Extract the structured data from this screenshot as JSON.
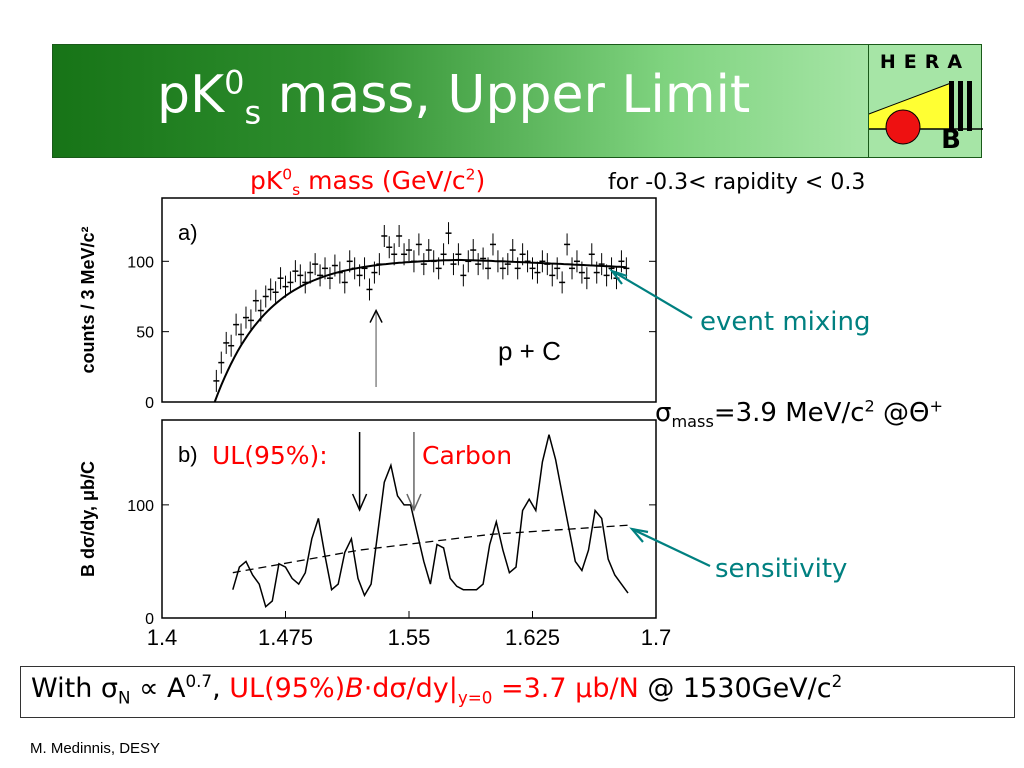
{
  "slide": {
    "title_main": "pK",
    "title_sup": "0",
    "title_sub": "s",
    "title_rest": " mass, Upper Limit",
    "logo_top": "HERA",
    "logo_bottom": "B",
    "xlabel_main": "pK",
    "xlabel_sup": "0",
    "xlabel_sub": "s",
    "xlabel_rest": " mass (GeV/c",
    "xlabel_sup2": "2",
    "xlabel_close": ")",
    "rapidity_note": "for -0.3< rapidity < 0.3",
    "event_mixing": "event mixing",
    "sigma_sym": "σ",
    "sigma_sub": "mass",
    "sigma_val": "=3.9 MeV/c",
    "sigma_sup": "2",
    "sigma_at": " @Θ",
    "sigma_plus": "+",
    "sensitivity": "sensitivity",
    "ul_label": "UL(95%):",
    "carbon_label": "Carbon",
    "footer": "M. Medinnis, DESY",
    "formula": {
      "with": "With σ",
      "sub_n": "N",
      "prop": " ∝ A",
      "sup_exp": "0.7",
      "comma": ", ",
      "ul": "UL(95%)",
      "B": "B",
      "dot": "·",
      "dsig": "dσ/dy|",
      "sub_y": "y=0",
      "val": " =3.7 μb/N",
      "at": " @ 1530GeV/c",
      "sup2": "2"
    }
  },
  "colors": {
    "title_text": "#ffffff",
    "accent_red": "#ff0000",
    "accent_teal": "#008080",
    "logo_bg": "#a6e5a6"
  },
  "chart_data": [
    {
      "type": "scatter",
      "title": "a)",
      "annotation": "p + C",
      "ylabel": "counts / 3 MeV/c²",
      "y_ticks": [
        "0",
        "50",
        "100"
      ],
      "ylim": [
        0,
        145
      ],
      "xlim": [
        1.4,
        1.7
      ],
      "fit": "event mixing",
      "points": [
        [
          1.433,
          15
        ],
        [
          1.436,
          28
        ],
        [
          1.439,
          42
        ],
        [
          1.442,
          40
        ],
        [
          1.445,
          55
        ],
        [
          1.448,
          48
        ],
        [
          1.451,
          60
        ],
        [
          1.454,
          58
        ],
        [
          1.457,
          72
        ],
        [
          1.46,
          65
        ],
        [
          1.463,
          75
        ],
        [
          1.466,
          80
        ],
        [
          1.469,
          78
        ],
        [
          1.472,
          88
        ],
        [
          1.475,
          82
        ],
        [
          1.478,
          85
        ],
        [
          1.481,
          93
        ],
        [
          1.484,
          90
        ],
        [
          1.487,
          85
        ],
        [
          1.49,
          92
        ],
        [
          1.493,
          98
        ],
        [
          1.496,
          90
        ],
        [
          1.499,
          95
        ],
        [
          1.502,
          88
        ],
        [
          1.505,
          97
        ],
        [
          1.508,
          92
        ],
        [
          1.511,
          85
        ],
        [
          1.514,
          100
        ],
        [
          1.517,
          95
        ],
        [
          1.52,
          90
        ],
        [
          1.523,
          95
        ],
        [
          1.526,
          80
        ],
        [
          1.529,
          92
        ],
        [
          1.532,
          98
        ],
        [
          1.535,
          118
        ],
        [
          1.538,
          110
        ],
        [
          1.541,
          105
        ],
        [
          1.544,
          118
        ],
        [
          1.547,
          105
        ],
        [
          1.55,
          108
        ],
        [
          1.553,
          100
        ],
        [
          1.556,
          112
        ],
        [
          1.559,
          98
        ],
        [
          1.562,
          108
        ],
        [
          1.565,
          100
        ],
        [
          1.568,
          95
        ],
        [
          1.571,
          105
        ],
        [
          1.574,
          120
        ],
        [
          1.577,
          98
        ],
        [
          1.58,
          105
        ],
        [
          1.583,
          90
        ],
        [
          1.586,
          100
        ],
        [
          1.589,
          108
        ],
        [
          1.592,
          98
        ],
        [
          1.595,
          102
        ],
        [
          1.598,
          95
        ],
        [
          1.601,
          112
        ],
        [
          1.604,
          100
        ],
        [
          1.607,
          95
        ],
        [
          1.61,
          98
        ],
        [
          1.613,
          108
        ],
        [
          1.616,
          95
        ],
        [
          1.619,
          105
        ],
        [
          1.622,
          100
        ],
        [
          1.625,
          95
        ],
        [
          1.628,
          92
        ],
        [
          1.631,
          100
        ],
        [
          1.634,
          98
        ],
        [
          1.637,
          90
        ],
        [
          1.64,
          95
        ],
        [
          1.643,
          85
        ],
        [
          1.646,
          112
        ],
        [
          1.649,
          95
        ],
        [
          1.652,
          100
        ],
        [
          1.655,
          92
        ],
        [
          1.658,
          88
        ],
        [
          1.661,
          105
        ],
        [
          1.664,
          92
        ],
        [
          1.667,
          98
        ],
        [
          1.67,
          90
        ],
        [
          1.673,
          95
        ],
        [
          1.676,
          88
        ],
        [
          1.679,
          100
        ],
        [
          1.682,
          95
        ]
      ],
      "arrow_x": 1.53
    },
    {
      "type": "line",
      "title": "b)",
      "ylabel": "B dσ/dy, μb/C",
      "y_ticks": [
        "0",
        "100"
      ],
      "ylim": [
        0,
        175
      ],
      "xlim": [
        1.4,
        1.7
      ],
      "x_ticks": [
        "1.4",
        "1.475",
        "1.55",
        "1.625",
        "1.7"
      ],
      "x_tick_values": [
        1.4,
        1.475,
        1.55,
        1.625,
        1.7
      ],
      "series": [
        {
          "values": [
            [
              1.443,
              25
            ],
            [
              1.447,
              45
            ],
            [
              1.451,
              50
            ],
            [
              1.455,
              38
            ],
            [
              1.459,
              30
            ],
            [
              1.463,
              10
            ],
            [
              1.467,
              15
            ],
            [
              1.471,
              48
            ],
            [
              1.475,
              45
            ],
            [
              1.479,
              35
            ],
            [
              1.483,
              30
            ],
            [
              1.487,
              40
            ],
            [
              1.491,
              70
            ],
            [
              1.495,
              88
            ],
            [
              1.499,
              55
            ],
            [
              1.503,
              25
            ],
            [
              1.507,
              30
            ],
            [
              1.511,
              58
            ],
            [
              1.515,
              70
            ],
            [
              1.519,
              35
            ],
            [
              1.523,
              20
            ],
            [
              1.527,
              30
            ],
            [
              1.531,
              75
            ],
            [
              1.535,
              120
            ],
            [
              1.539,
              135
            ],
            [
              1.543,
              108
            ],
            [
              1.547,
              100
            ],
            [
              1.551,
              100
            ],
            [
              1.555,
              75
            ],
            [
              1.559,
              50
            ],
            [
              1.563,
              30
            ],
            [
              1.567,
              65
            ],
            [
              1.571,
              62
            ],
            [
              1.575,
              35
            ],
            [
              1.579,
              28
            ],
            [
              1.583,
              25
            ],
            [
              1.587,
              25
            ],
            [
              1.591,
              25
            ],
            [
              1.595,
              30
            ],
            [
              1.599,
              65
            ],
            [
              1.603,
              85
            ],
            [
              1.607,
              60
            ],
            [
              1.611,
              40
            ],
            [
              1.615,
              45
            ],
            [
              1.619,
              95
            ],
            [
              1.623,
              105
            ],
            [
              1.627,
              95
            ],
            [
              1.631,
              138
            ],
            [
              1.635,
              162
            ],
            [
              1.639,
              140
            ],
            [
              1.643,
              110
            ],
            [
              1.647,
              80
            ],
            [
              1.651,
              50
            ],
            [
              1.655,
              42
            ],
            [
              1.659,
              60
            ],
            [
              1.663,
              95
            ],
            [
              1.667,
              88
            ],
            [
              1.671,
              52
            ],
            [
              1.675,
              38
            ],
            [
              1.679,
              30
            ],
            [
              1.683,
              22
            ]
          ]
        },
        {
          "name": "sensitivity",
          "values": [
            [
              1.443,
              40
            ],
            [
              1.52,
              60
            ],
            [
              1.6,
              74
            ],
            [
              1.683,
              82
            ]
          ]
        }
      ],
      "arrows_x": [
        1.52,
        1.553
      ]
    }
  ]
}
